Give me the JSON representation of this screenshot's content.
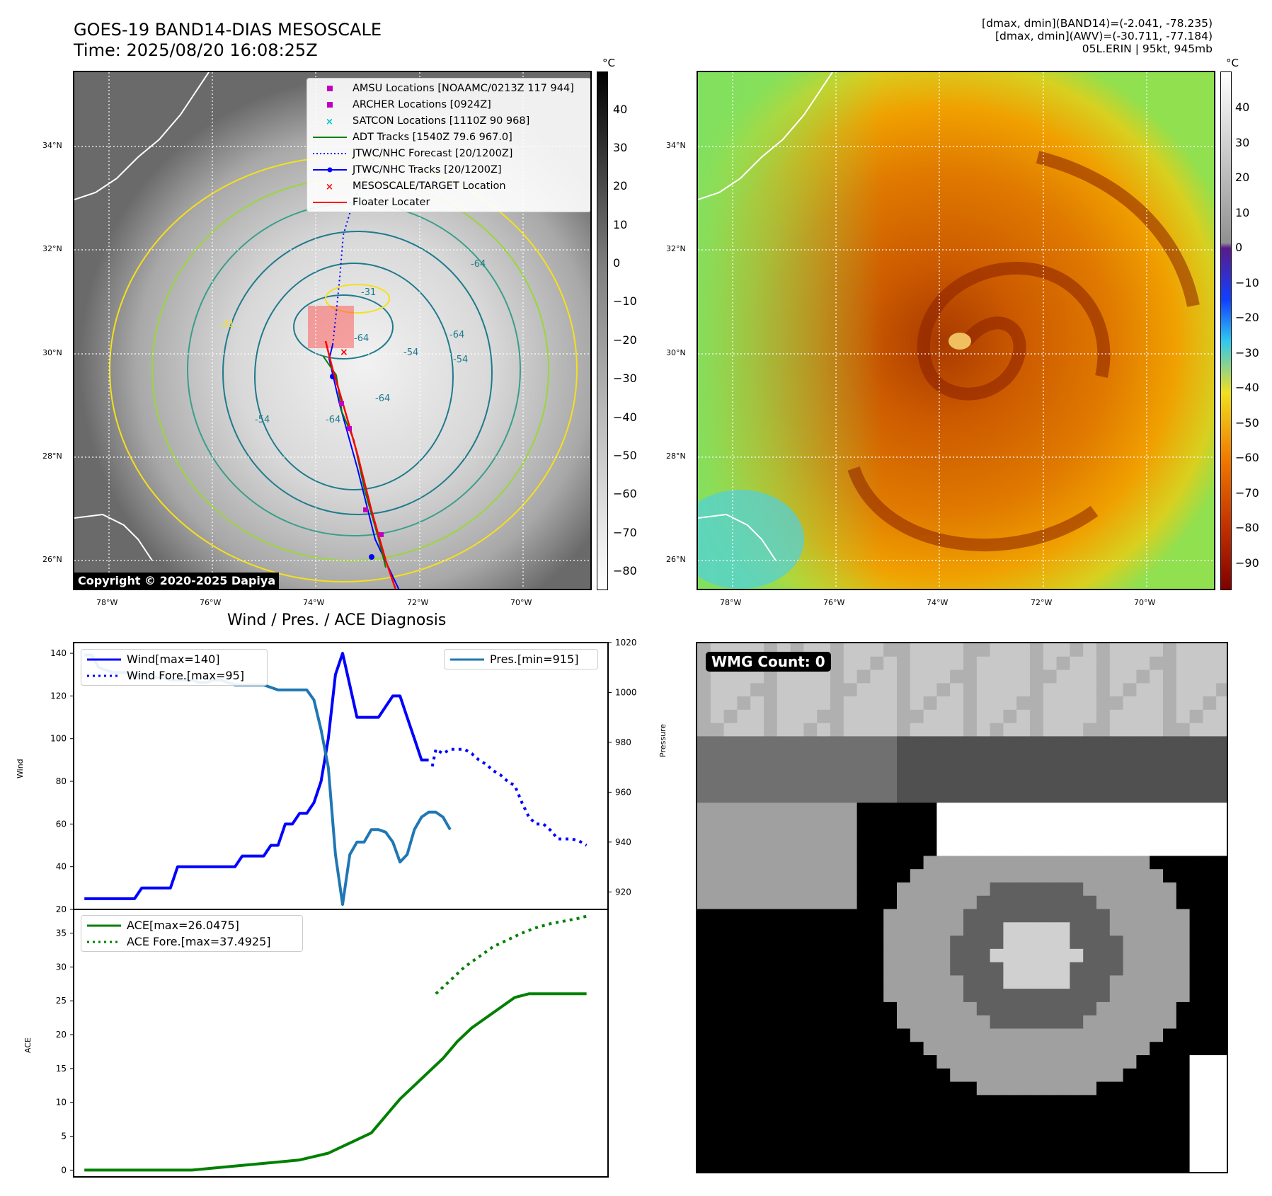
{
  "header": {
    "title_line1": "GOES-19 BAND14-DIAS MESOSCALE",
    "title_line2": "Time: 2025/08/20 16:08:25Z",
    "info_line1": "[dmax, dmin](BAND14)=(-2.041, -78.235)",
    "info_line2": "[dmax, dmin](AWV)=(-30.711, -77.184)",
    "info_line3": "05L.ERIN | 95kt, 945mb"
  },
  "map_axes": {
    "lat_labels": [
      "34°N",
      "32°N",
      "30°N",
      "28°N",
      "26°N"
    ],
    "lon_labels": [
      "78°W",
      "76°W",
      "74°W",
      "72°W",
      "70°W"
    ]
  },
  "left_map": {
    "copyright": "Copyright © 2020-2025 Dapiya",
    "colorbar_unit": "°C",
    "colorbar_ticks": [
      "40",
      "30",
      "20",
      "10",
      "0",
      "−10",
      "−20",
      "−30",
      "−40",
      "−50",
      "−60",
      "−70",
      "−80"
    ],
    "contour_labels": [
      "-31",
      "-31",
      "-64",
      "-64",
      "-54",
      "-54",
      "-64",
      "-64",
      "-64",
      "-54"
    ],
    "legend": [
      {
        "label": "AMSU Locations [NOAAMC/0213Z 117 944]",
        "marker": "square",
        "color": "#c000c0"
      },
      {
        "label": "ARCHER Locations [0924Z]",
        "marker": "square",
        "color": "#c000c0"
      },
      {
        "label": "SATCON Locations [1110Z 90 968]",
        "marker": "x",
        "color": "#00c0c0"
      },
      {
        "label": "ADT Tracks [1540Z 79.6 967.0]",
        "marker": "line",
        "color": "#008000"
      },
      {
        "label": "JTWC/NHC Forecast [20/1200Z]",
        "marker": "dotted",
        "color": "#0000ff"
      },
      {
        "label": "JTWC/NHC Tracks [20/1200Z]",
        "marker": "line-dot",
        "color": "#0000ff"
      },
      {
        "label": "MESOSCALE/TARGET Location",
        "marker": "x",
        "color": "#ff0000"
      },
      {
        "label": "Floater Locater",
        "marker": "line",
        "color": "#ff0000"
      }
    ]
  },
  "right_map": {
    "colorbar_unit": "°C",
    "colorbar_ticks": [
      "40",
      "30",
      "20",
      "10",
      "0",
      "−10",
      "−20",
      "−30",
      "−40",
      "−50",
      "−60",
      "−70",
      "−80",
      "−90"
    ]
  },
  "wmg_panel": {
    "label": "WMG Count: 0"
  },
  "colors": {
    "wind": "#0000ff",
    "pressure": "#1f77b4",
    "ace": "#008000"
  },
  "chart_data": [
    {
      "type": "line",
      "title": "Wind / Pres. / ACE Diagnosis",
      "ylabel": "Wind",
      "y2label": "Pressure",
      "ylim": [
        20,
        145
      ],
      "y2lim": [
        913,
        1020
      ],
      "yticks": [
        "140",
        "120",
        "100",
        "80",
        "60",
        "40",
        "20"
      ],
      "y2ticks": [
        "1020",
        "1000",
        "980",
        "960",
        "940",
        "920"
      ],
      "series": [
        {
          "name": "Wind[max=140]",
          "axis": "left",
          "style": "solid",
          "x": [
            0,
            1,
            2,
            3,
            4,
            5,
            6,
            7,
            8,
            9,
            10,
            11,
            12,
            13,
            14,
            15,
            16,
            17,
            18,
            19,
            20,
            21,
            22,
            23,
            24,
            25,
            26,
            27,
            28,
            29,
            30,
            31,
            32,
            33,
            34,
            35,
            36,
            37,
            38,
            39,
            40,
            41,
            42,
            43,
            44,
            45,
            46,
            47,
            48
          ],
          "values": [
            25,
            25,
            25,
            25,
            25,
            25,
            25,
            25,
            30,
            30,
            30,
            30,
            30,
            40,
            40,
            40,
            40,
            40,
            40,
            40,
            40,
            40,
            45,
            45,
            45,
            45,
            50,
            50,
            60,
            60,
            65,
            65,
            70,
            80,
            100,
            130,
            140,
            125,
            110,
            110,
            110,
            110,
            115,
            120,
            120,
            110,
            100,
            90,
            90
          ]
        },
        {
          "name": "Wind Fore.[max=95]",
          "axis": "left",
          "style": "dotted",
          "x": [
            48.5,
            49,
            50,
            51,
            52,
            53,
            54,
            55,
            56,
            57,
            58,
            59,
            60,
            61,
            62,
            63,
            64,
            65,
            66,
            67,
            68,
            69,
            70
          ],
          "values": [
            87,
            95,
            93,
            95,
            95,
            95,
            93,
            90,
            88,
            85,
            83,
            80,
            78,
            70,
            63,
            60,
            60,
            57,
            53,
            53,
            53,
            52,
            50
          ]
        },
        {
          "name": "Pres.[min=915]",
          "axis": "right",
          "style": "solid",
          "x": [
            0,
            1,
            2,
            3,
            4,
            5,
            6,
            7,
            8,
            9,
            10,
            11,
            12,
            13,
            14,
            15,
            16,
            17,
            18,
            19,
            20,
            21,
            22,
            23,
            24,
            25,
            26,
            27,
            28,
            29,
            30,
            31,
            32,
            33,
            34,
            35,
            36,
            37,
            38,
            39,
            40,
            41,
            42,
            43,
            44,
            45,
            46,
            47,
            48,
            49,
            50,
            51
          ],
          "values": [
            1015,
            1015,
            1010,
            1009,
            1008,
            1008,
            1008,
            1007,
            1007,
            1007,
            1006,
            1006,
            1005,
            1005,
            1005,
            1005,
            1004,
            1004,
            1005,
            1005,
            1004,
            1003,
            1003,
            1003,
            1003,
            1003,
            1002,
            1001,
            1001,
            1001,
            1001,
            1001,
            997,
            985,
            970,
            935,
            915,
            935,
            940,
            940,
            945,
            945,
            944,
            940,
            932,
            935,
            945,
            950,
            952,
            952,
            950,
            945
          ]
        },
        {
          "name": "ACE[max=26.0475]",
          "axis": "ace",
          "style": "solid",
          "x": [
            0,
            5,
            10,
            15,
            20,
            25,
            30,
            32,
            34,
            35,
            36,
            38,
            40,
            42,
            44,
            46,
            48,
            50,
            52,
            54,
            56,
            58,
            60,
            62,
            64,
            66,
            68,
            70
          ],
          "values": [
            0,
            0,
            0,
            0,
            0.5,
            1,
            1.5,
            2,
            2.5,
            3,
            3.5,
            4.5,
            5.5,
            8,
            10.5,
            12.5,
            14.5,
            16.5,
            19,
            21,
            22.5,
            24,
            25.5,
            26.0475,
            26.0475,
            26.0475,
            26.0475,
            26.0475
          ]
        },
        {
          "name": "ACE Fore.[max=37.4925]",
          "axis": "ace",
          "style": "dotted",
          "x": [
            49,
            51,
            53,
            55,
            57,
            59,
            61,
            63,
            65,
            67,
            69,
            70
          ],
          "values": [
            26.0475,
            28,
            30,
            31.5,
            33,
            34,
            35,
            35.8,
            36.4,
            36.8,
            37.2,
            37.4925
          ]
        }
      ]
    },
    {
      "type": "line",
      "ylabel": "ACE",
      "ylim": [
        -1,
        38.5
      ],
      "yticks": [
        "35",
        "30",
        "25",
        "20",
        "15",
        "10",
        "5",
        "0"
      ]
    }
  ]
}
